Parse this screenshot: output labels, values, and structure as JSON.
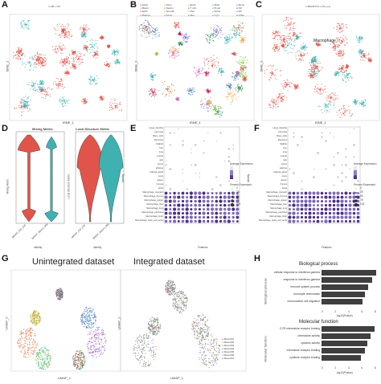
{
  "panels": {
    "A": {
      "label": "A",
      "xlabel": "tSNE_1",
      "ylabel": "tSNE_2",
      "legend": [
        "HB",
        "Ctrl"
      ]
    },
    "B": {
      "label": "B",
      "xlabel": "tSNE_1",
      "ylabel": "tSNE_2",
      "legend": [
        "Adipo",
        "Fibro",
        "Endo",
        "Mast",
        "Mono",
        "Macro",
        "Neutro",
        "T cell",
        "B cell",
        "NK",
        "Epith",
        "Smooth",
        "Peri",
        "Schw",
        "DC",
        "Plasma",
        "Kerat",
        "Mel",
        "Cycl",
        "Other"
      ]
    },
    "C": {
      "label": "C",
      "xlabel": "tSNE_1",
      "ylabel": "tSNE_2",
      "legend": [
        "MNHP.Ctrl",
        "Ctrl_mg"
      ],
      "annotation": "Macrophage"
    },
    "D": {
      "label": "D",
      "title_left": "Mixing Metric",
      "title_right": "Local Structure Metric",
      "ylabel_left": "Mixing Metric",
      "ylabel_right": "Local Structure Metric",
      "xlabel": "Identity",
      "x_ticks": [
        "MNHP_Ctrl_Ctrl",
        "MNHP_Macro_Met"
      ]
    },
    "E": {
      "label": "E",
      "xlabel": "Features",
      "ylabel": "Identity",
      "legend_expr": "Average Expression",
      "legend_pct": "Percent Expressed",
      "pct_vals": [
        "0",
        "25",
        "50",
        "75",
        "100"
      ],
      "rows": [
        "Large_intestine",
        "pancreas",
        "Bone_cells",
        "Monoctes",
        "bladder",
        "liver",
        "lung",
        "muscle",
        "skin",
        "uterus",
        "adipose",
        "Adrenal_gland",
        "ovary",
        "spleen",
        "thymus",
        "testis",
        "Macrophage_stomach",
        "Macrophage_thymus",
        "Macrophage_spleen",
        "Macrophage_liver",
        "Macrophage_lung",
        "Macrophage_pancreas",
        "Macrophage_brain",
        "Macrophage_heart_and_aorta"
      ]
    },
    "F": {
      "label": "F",
      "xlabel": "Features",
      "ylabel": "Identity",
      "legend_expr": "Average Expression",
      "legend_pct": "Percent Expressed",
      "pct_vals": [
        "0",
        "25",
        "50",
        "75",
        "100"
      ]
    },
    "G": {
      "label": "G",
      "title_left": "Unintegrated dataset",
      "title_right": "Integrated dataset",
      "xlabel": "UMAP_1",
      "ylabel": "UMAP_2",
      "legend": [
        "MacroM1",
        "MacroM2",
        "MacroM3",
        "MacroM4",
        "MacroM5",
        "MacroM6",
        "MacroM7"
      ]
    },
    "H": {
      "label": "H",
      "bp_title": "Biological process",
      "mf_title": "Molecular function",
      "bp_side": "Biological process",
      "mf_side": "Molecular function",
      "xlabel": "-log10(Pvalue)",
      "bp_terms": [
        {
          "term": "cellular response to interferon-gamma",
          "value": 8.2
        },
        {
          "term": "response to interferon-gamma",
          "value": 7.6
        },
        {
          "term": "immune system process",
          "value": 7.1
        },
        {
          "term": "monocyte chemotaxis",
          "value": 6.6
        },
        {
          "term": "mononuclear cell migration",
          "value": 6.2
        }
      ],
      "mf_terms": [
        {
          "term": "CCR chemokine receptor binding",
          "value": 8.0
        },
        {
          "term": "chemokine activity",
          "value": 7.4
        },
        {
          "term": "cytokine activity",
          "value": 6.9
        },
        {
          "term": "chemokine receptor binding",
          "value": 6.5
        },
        {
          "term": "cytokine receptor binding",
          "value": 6.0
        }
      ],
      "ticks": [
        "0",
        "2",
        "4",
        "6",
        "8"
      ]
    }
  },
  "colors": {
    "red": "#e0544a",
    "teal": "#3fb1b0",
    "purple": "#4b2e83",
    "grey": "#9b9b9b"
  }
}
